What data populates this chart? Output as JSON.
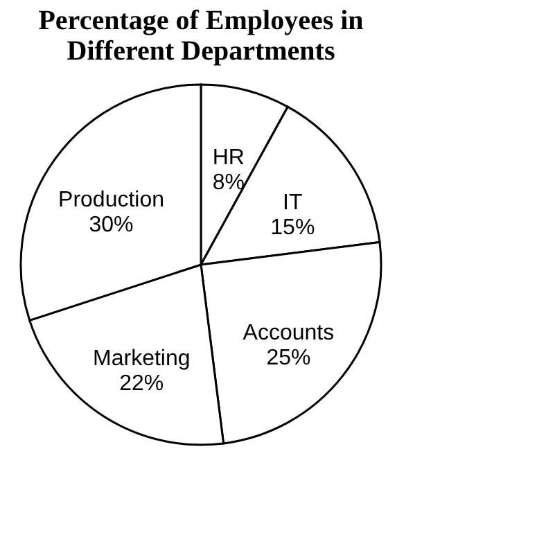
{
  "chart_data": {
    "type": "pie",
    "title": "Percentage of Employees in Different Departments",
    "categories": [
      "HR",
      "IT",
      "Accounts",
      "Marketing",
      "Production"
    ],
    "values": [
      8,
      15,
      25,
      22,
      30
    ],
    "value_labels": [
      "8%",
      "15%",
      "25%",
      "22%",
      "30%"
    ],
    "colors": [
      "#ffffff",
      "#ffffff",
      "#ffffff",
      "#ffffff",
      "#ffffff"
    ],
    "legend": false
  }
}
